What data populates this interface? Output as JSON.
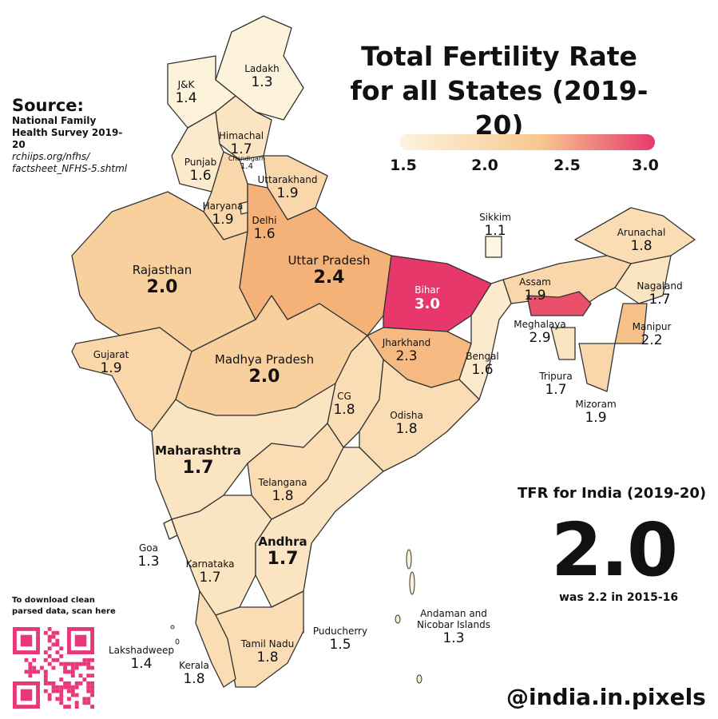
{
  "title": "Total Fertility Rate for all States (2019-20)",
  "legend": {
    "ticks": [
      "1.5",
      "2.0",
      "2.5",
      "3.0"
    ],
    "colors": [
      "#fdf4de",
      "#f7c890",
      "#e8386b"
    ]
  },
  "source": {
    "heading": "Source:",
    "name": "National Family Health Survey 2019-20",
    "url_1": "rchiips.org/nfhs/",
    "url_2": "factsheet_NFHS-5.shtml"
  },
  "india": {
    "label": "TFR for India (2019-20)",
    "value": "2.0",
    "previous": "was 2.2 in 2015-16"
  },
  "download": {
    "line1": "To download clean",
    "line2": "parsed data, scan here"
  },
  "handle": "@india.in.pixels",
  "states": [
    {
      "name": "Ladakh",
      "value": "1.3"
    },
    {
      "name": "J&K",
      "value": "1.4"
    },
    {
      "name": "Himachal",
      "value": "1.7"
    },
    {
      "name": "Chandigarh",
      "value": "1.4"
    },
    {
      "name": "Punjab",
      "value": "1.6"
    },
    {
      "name": "Uttarakhand",
      "value": "1.9"
    },
    {
      "name": "Haryana",
      "value": "1.9"
    },
    {
      "name": "Delhi",
      "value": "1.6"
    },
    {
      "name": "Rajasthan",
      "value": "2.0"
    },
    {
      "name": "Uttar Pradesh",
      "value": "2.4"
    },
    {
      "name": "Bihar",
      "value": "3.0"
    },
    {
      "name": "Sikkim",
      "value": "1.1"
    },
    {
      "name": "Arunachal",
      "value": "1.8"
    },
    {
      "name": "Assam",
      "value": "1.9"
    },
    {
      "name": "Nagaland",
      "value": "1.7"
    },
    {
      "name": "Meghalaya",
      "value": "2.9"
    },
    {
      "name": "Manipur",
      "value": "2.2"
    },
    {
      "name": "Tripura",
      "value": "1.7"
    },
    {
      "name": "Mizoram",
      "value": "1.9"
    },
    {
      "name": "Gujarat",
      "value": "1.9"
    },
    {
      "name": "Madhya Pradesh",
      "value": "2.0"
    },
    {
      "name": "Jharkhand",
      "value": "2.3"
    },
    {
      "name": "Bengal",
      "value": "1.6"
    },
    {
      "name": "CG",
      "value": "1.8"
    },
    {
      "name": "Odisha",
      "value": "1.8"
    },
    {
      "name": "Maharashtra",
      "value": "1.7"
    },
    {
      "name": "Telangana",
      "value": "1.8"
    },
    {
      "name": "Goa",
      "value": "1.3"
    },
    {
      "name": "Karnataka",
      "value": "1.7"
    },
    {
      "name": "Andhra",
      "value": "1.7"
    },
    {
      "name": "Puducherry",
      "value": "1.5"
    },
    {
      "name": "Andaman and Nicobar Islands",
      "value": "1.3"
    },
    {
      "name": "Lakshadweep",
      "value": "1.4"
    },
    {
      "name": "Tamil Nadu",
      "value": "1.8"
    },
    {
      "name": "Kerala",
      "value": "1.8"
    }
  ]
}
